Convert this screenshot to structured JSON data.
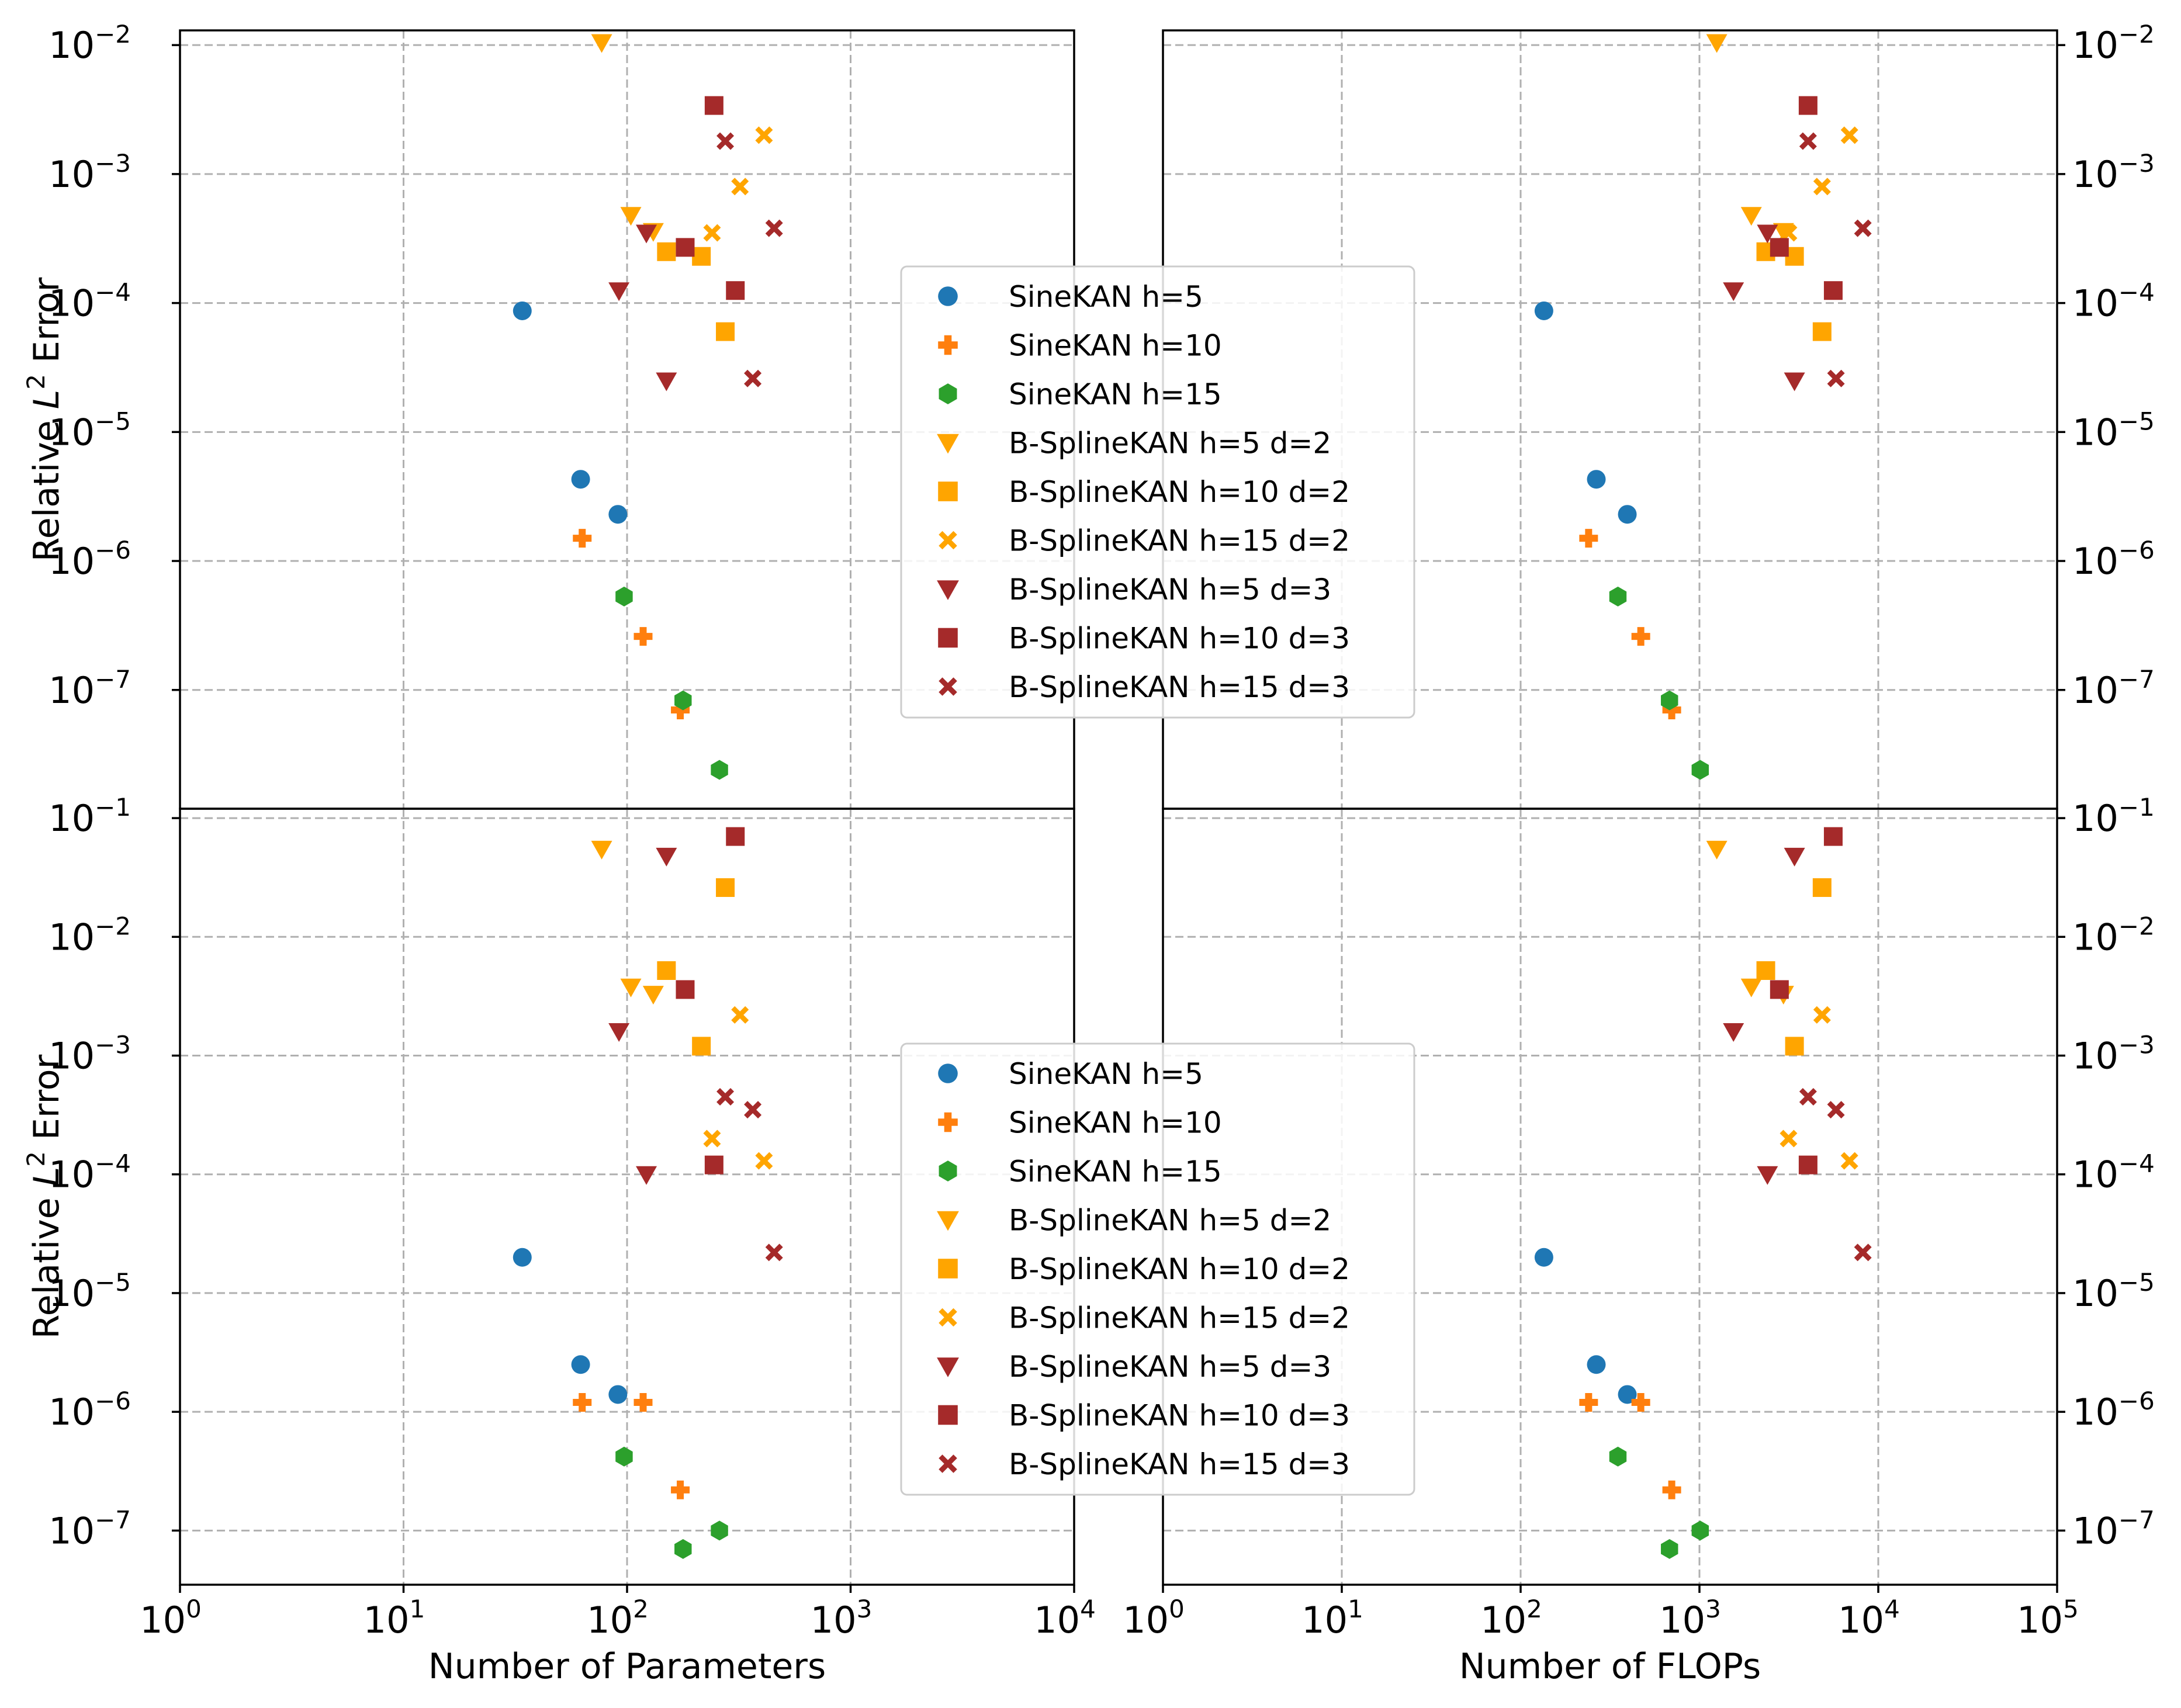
{
  "chart_data": {
    "type": "scatter",
    "layout": "2x2 grid",
    "colors": {
      "sine": "#1f77b4",
      "orange": "#ff7f0e",
      "green": "#2ca02c",
      "gold": "#ffa500",
      "darkred": "#a52a2a"
    },
    "legend": {
      "placement": "center",
      "entries": [
        {
          "label": "SineKAN h=5",
          "marker": "circle",
          "color": "#1f77b4"
        },
        {
          "label": "SineKAN h=10",
          "marker": "plus",
          "color": "#ff7f0e"
        },
        {
          "label": "SineKAN h=15",
          "marker": "hexagon",
          "color": "#2ca02c"
        },
        {
          "label": "B-SplineKAN h=5 d=2",
          "marker": "triangle-down",
          "color": "#ffa500"
        },
        {
          "label": "B-SplineKAN h=10 d=2",
          "marker": "square",
          "color": "#ffa500"
        },
        {
          "label": "B-SplineKAN h=15 d=2",
          "marker": "x",
          "color": "#ffa500"
        },
        {
          "label": "B-SplineKAN h=5 d=3",
          "marker": "triangle-down",
          "color": "#a52a2a"
        },
        {
          "label": "B-SplineKAN h=10 d=3",
          "marker": "square",
          "color": "#a52a2a"
        },
        {
          "label": "B-SplineKAN h=15 d=3",
          "marker": "x",
          "color": "#a52a2a"
        }
      ]
    },
    "x_axes": {
      "params": {
        "xlabel": "Number of Parameters",
        "xscale": "log",
        "xlim": [
          1,
          10000
        ],
        "ticks": [
          {
            "b": "10",
            "e": "0"
          },
          {
            "b": "10",
            "e": "1"
          },
          {
            "b": "10",
            "e": "2"
          },
          {
            "b": "10",
            "e": "3"
          },
          {
            "b": "10",
            "e": "4"
          }
        ]
      },
      "flops": {
        "xlabel": "Number of FLOPs",
        "xscale": "log",
        "xlim": [
          1,
          100000
        ],
        "ticks": [
          {
            "b": "10",
            "e": "0"
          },
          {
            "b": "10",
            "e": "1"
          },
          {
            "b": "10",
            "e": "2"
          },
          {
            "b": "10",
            "e": "3"
          },
          {
            "b": "10",
            "e": "4"
          },
          {
            "b": "10",
            "e": "5"
          }
        ]
      }
    },
    "y_axes": {
      "top": {
        "ylabel": "Relative L² Error",
        "ylabel_main": "Relative ",
        "ylabel_var": "L",
        "ylabel_sup": "2",
        "ylabel_tail": " Error",
        "yscale": "log",
        "ylim": [
          1.2e-08,
          0.013
        ],
        "ticks": [
          {
            "b": "10",
            "e": "−7"
          },
          {
            "b": "10",
            "e": "−6"
          },
          {
            "b": "10",
            "e": "−5"
          },
          {
            "b": "10",
            "e": "−4"
          },
          {
            "b": "10",
            "e": "−3"
          },
          {
            "b": "10",
            "e": "−2"
          }
        ]
      },
      "bottom": {
        "ylabel": "Relative L² Error",
        "ylabel_main": "Relative ",
        "ylabel_var": "L",
        "ylabel_sup": "2",
        "ylabel_tail": " Error",
        "yscale": "log",
        "ylim": [
          3.5e-08,
          0.12
        ],
        "ticks": [
          {
            "b": "10",
            "e": "−7"
          },
          {
            "b": "10",
            "e": "−6"
          },
          {
            "b": "10",
            "e": "−5"
          },
          {
            "b": "10",
            "e": "−4"
          },
          {
            "b": "10",
            "e": "−3"
          },
          {
            "b": "10",
            "e": "−2"
          },
          {
            "b": "10",
            "e": "−1"
          }
        ]
      }
    },
    "panels": [
      {
        "id": "top-left",
        "x_axis": "params",
        "y_axis": "top",
        "series": [
          {
            "name": "SineKAN h=5",
            "points": [
              [
                34,
                8.7e-05
              ],
              [
                62,
                4.3e-06
              ],
              [
                91,
                2.3e-06
              ]
            ]
          },
          {
            "name": "SineKAN h=10",
            "points": [
              [
                63,
                1.5e-06
              ],
              [
                118,
                2.6e-07
              ],
              [
                173,
                7e-08
              ]
            ]
          },
          {
            "name": "SineKAN h=15",
            "points": [
              [
                97,
                5.3e-07
              ],
              [
                178,
                8.3e-08
              ],
              [
                259,
                2.4e-08
              ]
            ]
          },
          {
            "name": "B-SplineKAN h=5 d=2",
            "points": [
              [
                77,
                0.0105
              ],
              [
                104,
                0.00048
              ],
              [
                131,
                0.00036
              ]
            ]
          },
          {
            "name": "B-SplineKAN h=10 d=2",
            "points": [
              [
                150,
                0.00025
              ],
              [
                215,
                0.00023
              ],
              [
                275,
                6e-05
              ]
            ]
          },
          {
            "name": "B-SplineKAN h=15 d=2",
            "points": [
              [
                240,
                0.00035
              ],
              [
                320,
                0.0008
              ],
              [
                410,
                0.002
              ]
            ]
          },
          {
            "name": "B-SplineKAN h=5 d=3",
            "points": [
              [
                92,
                0.000125
              ],
              [
                122,
                0.00035
              ],
              [
                150,
                2.5e-05
              ]
            ]
          },
          {
            "name": "B-SplineKAN h=10 d=3",
            "points": [
              [
                182,
                0.00027
              ],
              [
                245,
                0.0034
              ],
              [
                305,
                0.000125
              ]
            ]
          },
          {
            "name": "B-SplineKAN h=15 d=3",
            "points": [
              [
                275,
                0.0018
              ],
              [
                365,
                2.6e-05
              ],
              [
                455,
                0.00038
              ]
            ]
          }
        ]
      },
      {
        "id": "top-right",
        "x_axis": "flops",
        "y_axis": "top",
        "series": [
          {
            "name": "SineKAN h=5",
            "points": [
              [
                135,
                8.7e-05
              ],
              [
                265,
                4.3e-06
              ],
              [
                395,
                2.3e-06
              ]
            ]
          },
          {
            "name": "SineKAN h=10",
            "points": [
              [
                240,
                1.5e-06
              ],
              [
                470,
                2.6e-07
              ],
              [
                700,
                7e-08
              ]
            ]
          },
          {
            "name": "SineKAN h=15",
            "points": [
              [
                350,
                5.3e-07
              ],
              [
                680,
                8.3e-08
              ],
              [
                1010,
                2.4e-08
              ]
            ]
          },
          {
            "name": "B-SplineKAN h=5 d=2",
            "points": [
              [
                1250,
                0.0105
              ],
              [
                1950,
                0.00048
              ],
              [
                2950,
                0.00036
              ]
            ]
          },
          {
            "name": "B-SplineKAN h=10 d=2",
            "points": [
              [
                2350,
                0.00025
              ],
              [
                3400,
                0.00023
              ],
              [
                4850,
                6e-05
              ]
            ]
          },
          {
            "name": "B-SplineKAN h=15 d=2",
            "points": [
              [
                3150,
                0.00035
              ],
              [
                4850,
                0.0008
              ],
              [
                6900,
                0.002
              ]
            ]
          },
          {
            "name": "B-SplineKAN h=5 d=3",
            "points": [
              [
                1550,
                0.000125
              ],
              [
                2400,
                0.00035
              ],
              [
                3400,
                2.5e-05
              ]
            ]
          },
          {
            "name": "B-SplineKAN h=10 d=3",
            "points": [
              [
                2800,
                0.00027
              ],
              [
                4050,
                0.0034
              ],
              [
                5600,
                0.000125
              ]
            ]
          },
          {
            "name": "B-SplineKAN h=15 d=3",
            "points": [
              [
                4050,
                0.0018
              ],
              [
                5800,
                2.6e-05
              ],
              [
                8200,
                0.00038
              ]
            ]
          }
        ]
      },
      {
        "id": "bottom-left",
        "x_axis": "params",
        "y_axis": "bottom",
        "series": [
          {
            "name": "SineKAN h=5",
            "points": [
              [
                34,
                2e-05
              ],
              [
                62,
                2.5e-06
              ],
              [
                91,
                1.4e-06
              ]
            ]
          },
          {
            "name": "SineKAN h=10",
            "points": [
              [
                63,
                1.2e-06
              ],
              [
                118,
                1.2e-06
              ],
              [
                173,
                2.2e-07
              ]
            ]
          },
          {
            "name": "SineKAN h=15",
            "points": [
              [
                97,
                4.2e-07
              ],
              [
                178,
                7e-08
              ],
              [
                259,
                1e-07
              ]
            ]
          },
          {
            "name": "B-SplineKAN h=5 d=2",
            "points": [
              [
                77,
                0.055
              ],
              [
                104,
                0.0038
              ],
              [
                131,
                0.0033
              ]
            ]
          },
          {
            "name": "B-SplineKAN h=10 d=2",
            "points": [
              [
                150,
                0.0052
              ],
              [
                215,
                0.0012
              ],
              [
                275,
                0.026
              ]
            ]
          },
          {
            "name": "B-SplineKAN h=15 d=2",
            "points": [
              [
                240,
                0.0002
              ],
              [
                320,
                0.0022
              ],
              [
                410,
                0.00013
              ]
            ]
          },
          {
            "name": "B-SplineKAN h=5 d=3",
            "points": [
              [
                92,
                0.0016
              ],
              [
                122,
                0.0001
              ],
              [
                150,
                0.048
              ]
            ]
          },
          {
            "name": "B-SplineKAN h=10 d=3",
            "points": [
              [
                182,
                0.0036
              ],
              [
                245,
                0.00012
              ],
              [
                305,
                0.07
              ]
            ]
          },
          {
            "name": "B-SplineKAN h=15 d=3",
            "points": [
              [
                275,
                0.00045
              ],
              [
                365,
                0.00035
              ],
              [
                455,
                2.2e-05
              ]
            ]
          }
        ]
      },
      {
        "id": "bottom-right",
        "x_axis": "flops",
        "y_axis": "bottom",
        "series": [
          {
            "name": "SineKAN h=5",
            "points": [
              [
                135,
                2e-05
              ],
              [
                265,
                2.5e-06
              ],
              [
                395,
                1.4e-06
              ]
            ]
          },
          {
            "name": "SineKAN h=10",
            "points": [
              [
                240,
                1.2e-06
              ],
              [
                470,
                1.2e-06
              ],
              [
                700,
                2.2e-07
              ]
            ]
          },
          {
            "name": "SineKAN h=15",
            "points": [
              [
                350,
                4.2e-07
              ],
              [
                680,
                7e-08
              ],
              [
                1010,
                1e-07
              ]
            ]
          },
          {
            "name": "B-SplineKAN h=5 d=2",
            "points": [
              [
                1250,
                0.055
              ],
              [
                1950,
                0.0038
              ],
              [
                2950,
                0.0033
              ]
            ]
          },
          {
            "name": "B-SplineKAN h=10 d=2",
            "points": [
              [
                2350,
                0.0052
              ],
              [
                3400,
                0.0012
              ],
              [
                4850,
                0.026
              ]
            ]
          },
          {
            "name": "B-SplineKAN h=15 d=2",
            "points": [
              [
                3150,
                0.0002
              ],
              [
                4850,
                0.0022
              ],
              [
                6900,
                0.00013
              ]
            ]
          },
          {
            "name": "B-SplineKAN h=5 d=3",
            "points": [
              [
                1550,
                0.0016
              ],
              [
                2400,
                0.0001
              ],
              [
                3400,
                0.048
              ]
            ]
          },
          {
            "name": "B-SplineKAN h=10 d=3",
            "points": [
              [
                2800,
                0.0036
              ],
              [
                4050,
                0.00012
              ],
              [
                5600,
                0.07
              ]
            ]
          },
          {
            "name": "B-SplineKAN h=15 d=3",
            "points": [
              [
                4050,
                0.00045
              ],
              [
                5800,
                0.00035
              ],
              [
                8200,
                2.2e-05
              ]
            ]
          }
        ]
      }
    ]
  }
}
